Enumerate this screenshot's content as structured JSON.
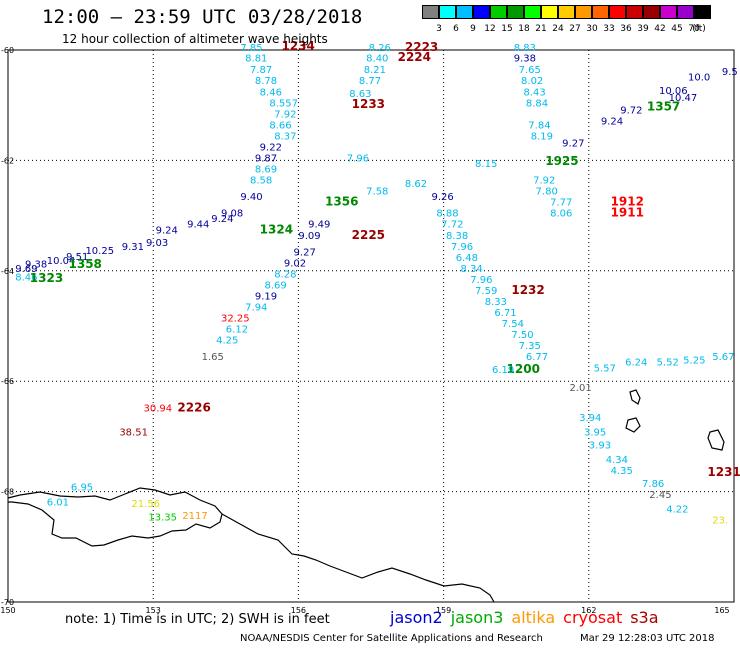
{
  "header": {
    "title": "12:00 – 23:59 UTC 03/28/2018",
    "subtitle": "12 hour collection of altimeter wave heights"
  },
  "colorbar": {
    "unit": "(ft)",
    "colors": [
      "#808080",
      "#00ffff",
      "#00bfff",
      "#0000ff",
      "#00cc00",
      "#009900",
      "#00ff00",
      "#ffff00",
      "#ffcc00",
      "#ff9900",
      "#ff6600",
      "#ff0000",
      "#cc0000",
      "#990000",
      "#cc00cc",
      "#9900cc",
      "#000000"
    ],
    "labels": [
      "3",
      "6",
      "9",
      "12",
      "15",
      "18",
      "21",
      "24",
      "27",
      "30",
      "33",
      "36",
      "39",
      "42",
      "45",
      "70"
    ]
  },
  "axes": {
    "lat_ticks": [
      "-60",
      "-62",
      "-64",
      "-66",
      "-68",
      "-70"
    ],
    "lon_ticks": [
      "150",
      "153",
      "156",
      "159",
      "162",
      "165"
    ]
  },
  "note": "note: 1) Time is in UTC; 2) SWH is in feet",
  "legend": [
    {
      "name": "jason2",
      "color": "#0000cc"
    },
    {
      "name": "jason3",
      "color": "#00aa00"
    },
    {
      "name": "altika",
      "color": "#ff9900"
    },
    {
      "name": "cryosat",
      "color": "#ff0000"
    },
    {
      "name": "s3a",
      "color": "#aa0000"
    }
  ],
  "footer": "NOAA/NESDIS Center for Satellite Applications and Research",
  "footer_time": "Mar 29 12:28:03 UTC 2018",
  "labels": [
    {
      "t": "7.85",
      "lon": 154.8,
      "lat": -60.02,
      "c": "#00bbee"
    },
    {
      "t": "1234",
      "lon": 155.65,
      "lat": -60.0,
      "c": "#990000",
      "bold": true
    },
    {
      "t": "8.81",
      "lon": 154.9,
      "lat": -60.21,
      "c": "#00bbee"
    },
    {
      "t": "7.87",
      "lon": 155.0,
      "lat": -60.42,
      "c": "#00bbee"
    },
    {
      "t": "8.78",
      "lon": 155.1,
      "lat": -60.62,
      "c": "#00bbee"
    },
    {
      "t": "8.46",
      "lon": 155.2,
      "lat": -60.82,
      "c": "#00bbee"
    },
    {
      "t": "8.557",
      "lon": 155.4,
      "lat": -61.02,
      "c": "#00bbee"
    },
    {
      "t": "7.92",
      "lon": 155.5,
      "lat": -61.22,
      "c": "#00bbee"
    },
    {
      "t": "8.66",
      "lon": 155.4,
      "lat": -61.42,
      "c": "#00bbee"
    },
    {
      "t": "8.37",
      "lon": 155.5,
      "lat": -61.62,
      "c": "#00bbee"
    },
    {
      "t": "9.22",
      "lon": 155.2,
      "lat": -61.82,
      "c": "#000099"
    },
    {
      "t": "9.87",
      "lon": 155.1,
      "lat": -62.02,
      "c": "#000099"
    },
    {
      "t": "8.26",
      "lon": 157.45,
      "lat": -60.02,
      "c": "#00bbee"
    },
    {
      "t": "2223",
      "lon": 158.2,
      "lat": -60.02,
      "c": "#990000",
      "bold": true
    },
    {
      "t": "2224",
      "lon": 158.05,
      "lat": -60.2,
      "c": "#990000",
      "bold": true
    },
    {
      "t": "8.40",
      "lon": 157.4,
      "lat": -60.21,
      "c": "#00bbee"
    },
    {
      "t": "8.21",
      "lon": 157.35,
      "lat": -60.42,
      "c": "#00bbee"
    },
    {
      "t": "8.77",
      "lon": 157.25,
      "lat": -60.62,
      "c": "#00bbee"
    },
    {
      "t": "8.63",
      "lon": 157.05,
      "lat": -60.85,
      "c": "#00bbee"
    },
    {
      "t": "1233",
      "lon": 157.1,
      "lat": -61.05,
      "c": "#990000",
      "bold": true
    },
    {
      "t": "7.96",
      "lon": 157.0,
      "lat": -62.02,
      "c": "#00bbee"
    },
    {
      "t": "8.83",
      "lon": 160.45,
      "lat": -60.02,
      "c": "#00bbee"
    },
    {
      "t": "9.38",
      "lon": 160.45,
      "lat": -60.21,
      "c": "#000099"
    },
    {
      "t": "7.65",
      "lon": 160.55,
      "lat": -60.42,
      "c": "#00bbee"
    },
    {
      "t": "8.02",
      "lon": 160.6,
      "lat": -60.62,
      "c": "#00bbee"
    },
    {
      "t": "8.43",
      "lon": 160.65,
      "lat": -60.82,
      "c": "#00bbee"
    },
    {
      "t": "8.84",
      "lon": 160.7,
      "lat": -61.02,
      "c": "#00bbee"
    },
    {
      "t": "7.84",
      "lon": 160.75,
      "lat": -61.42,
      "c": "#00bbee"
    },
    {
      "t": "8.19",
      "lon": 160.8,
      "lat": -61.62,
      "c": "#00bbee"
    },
    {
      "t": "7.92",
      "lon": 160.85,
      "lat": -62.42,
      "c": "#00bbee"
    },
    {
      "t": "7.80",
      "lon": 160.9,
      "lat": -62.62,
      "c": "#00bbee"
    },
    {
      "t": "7.77",
      "lon": 161.2,
      "lat": -62.82,
      "c": "#00bbee"
    },
    {
      "t": "8.06",
      "lon": 161.2,
      "lat": -63.02,
      "c": "#00bbee"
    },
    {
      "t": "1912",
      "lon": 162.45,
      "lat": -62.82,
      "c": "#ff0000",
      "bold": true
    },
    {
      "t": "1911",
      "lon": 162.45,
      "lat": -63.02,
      "c": "#ff0000",
      "bold": true
    },
    {
      "t": "1925",
      "lon": 161.1,
      "lat": -62.08,
      "c": "#008800",
      "bold": true
    },
    {
      "t": "1357",
      "lon": 163.2,
      "lat": -61.1,
      "c": "#008800",
      "bold": true
    },
    {
      "t": "9.26",
      "lon": 158.75,
      "lat": -62.72,
      "c": "#000099"
    },
    {
      "t": "1356",
      "lon": 156.55,
      "lat": -62.82,
      "c": "#008800",
      "bold": true
    },
    {
      "t": "8.69",
      "lon": 155.1,
      "lat": -62.22,
      "c": "#00bbee"
    },
    {
      "t": "8.58",
      "lon": 155.0,
      "lat": -62.42,
      "c": "#00bbee"
    },
    {
      "t": "9.40",
      "lon": 154.8,
      "lat": -62.72,
      "c": "#000099"
    },
    {
      "t": "9.08",
      "lon": 154.4,
      "lat": -63.02,
      "c": "#000099"
    },
    {
      "t": "8.88",
      "lon": 158.85,
      "lat": -63.02,
      "c": "#00bbee"
    },
    {
      "t": "7.72",
      "lon": 158.95,
      "lat": -63.22,
      "c": "#00bbee"
    },
    {
      "t": "8.38",
      "lon": 159.05,
      "lat": -63.42,
      "c": "#00bbee"
    },
    {
      "t": "7.96",
      "lon": 159.15,
      "lat": -63.62,
      "c": "#00bbee"
    },
    {
      "t": "6.48",
      "lon": 159.25,
      "lat": -63.82,
      "c": "#00bbee"
    },
    {
      "t": "8.34",
      "lon": 159.35,
      "lat": -64.02,
      "c": "#00bbee"
    },
    {
      "t": "7.96",
      "lon": 159.55,
      "lat": -64.22,
      "c": "#00bbee"
    },
    {
      "t": "7.59",
      "lon": 159.65,
      "lat": -64.42,
      "c": "#00bbee"
    },
    {
      "t": "1232",
      "lon": 160.4,
      "lat": -64.42,
      "c": "#990000",
      "bold": true
    },
    {
      "t": "8.33",
      "lon": 159.85,
      "lat": -64.62,
      "c": "#00bbee"
    },
    {
      "t": "6.71",
      "lon": 160.05,
      "lat": -64.82,
      "c": "#00bbee"
    },
    {
      "t": "7.54",
      "lon": 160.2,
      "lat": -65.02,
      "c": "#00bbee"
    },
    {
      "t": "7.50",
      "lon": 160.4,
      "lat": -65.22,
      "c": "#00bbee"
    },
    {
      "t": "7.35",
      "lon": 160.55,
      "lat": -65.42,
      "c": "#00bbee"
    },
    {
      "t": "6.77",
      "lon": 160.7,
      "lat": -65.62,
      "c": "#00bbee"
    },
    {
      "t": "1200",
      "lon": 160.3,
      "lat": -65.85,
      "c": "#008800",
      "bold": true
    },
    {
      "t": "2.01",
      "lon": 161.6,
      "lat": -66.18,
      "c": "#555555"
    },
    {
      "t": "3.94",
      "lon": 161.8,
      "lat": -66.72,
      "c": "#00bbee"
    },
    {
      "t": "3.95",
      "lon": 161.9,
      "lat": -66.98,
      "c": "#00bbee"
    },
    {
      "t": "3.93",
      "lon": 162.0,
      "lat": -67.22,
      "c": "#00bbee"
    },
    {
      "t": "4.34",
      "lon": 162.35,
      "lat": -67.48,
      "c": "#00bbee"
    },
    {
      "t": "4.35",
      "lon": 162.45,
      "lat": -67.68,
      "c": "#00bbee"
    },
    {
      "t": "7.86",
      "lon": 163.1,
      "lat": -67.92,
      "c": "#00bbee"
    },
    {
      "t": "2.45",
      "lon": 163.25,
      "lat": -68.12,
      "c": "#555555"
    },
    {
      "t": "4.22",
      "lon": 163.6,
      "lat": -68.38,
      "c": "#00bbee"
    },
    {
      "t": "23.",
      "lon": 164.55,
      "lat": -68.58,
      "c": "#dddd00"
    },
    {
      "t": "1231",
      "lon": 164.45,
      "lat": -67.72,
      "c": "#990000",
      "bold": true
    },
    {
      "t": "5.25",
      "lon": 163.95,
      "lat": -65.68,
      "c": "#00bbee"
    },
    {
      "t": "5.67",
      "lon": 164.55,
      "lat": -65.62,
      "c": "#00bbee"
    },
    {
      "t": "5.52",
      "lon": 163.4,
      "lat": -65.72,
      "c": "#00bbee"
    },
    {
      "t": "6.24",
      "lon": 162.75,
      "lat": -65.72,
      "c": "#00bbee"
    },
    {
      "t": "5.57",
      "lon": 162.1,
      "lat": -65.82,
      "c": "#00bbee"
    },
    {
      "t": "6.19",
      "lon": 160.0,
      "lat": -65.85,
      "c": "#00bbee"
    },
    {
      "t": "9.27",
      "lon": 155.9,
      "lat": -63.72,
      "c": "#000099"
    },
    {
      "t": "9.02",
      "lon": 155.7,
      "lat": -63.92,
      "c": "#000099"
    },
    {
      "t": "8.28",
      "lon": 155.5,
      "lat": -64.12,
      "c": "#00bbee"
    },
    {
      "t": "8.69",
      "lon": 155.3,
      "lat": -64.32,
      "c": "#00bbee"
    },
    {
      "t": "9.19",
      "lon": 155.1,
      "lat": -64.52,
      "c": "#000099"
    },
    {
      "t": "7.94",
      "lon": 154.9,
      "lat": -64.72,
      "c": "#00bbee"
    },
    {
      "t": "32.25",
      "lon": 154.4,
      "lat": -64.92,
      "c": "#ff0000"
    },
    {
      "t": "6.12",
      "lon": 154.5,
      "lat": -65.12,
      "c": "#00bbee"
    },
    {
      "t": "4.25",
      "lon": 154.3,
      "lat": -65.32,
      "c": "#00bbee"
    },
    {
      "t": "1.65",
      "lon": 154.0,
      "lat": -65.62,
      "c": "#555555"
    },
    {
      "t": "9.09",
      "lon": 156.0,
      "lat": -63.42,
      "c": "#000099"
    },
    {
      "t": "9.49",
      "lon": 156.2,
      "lat": -63.22,
      "c": "#000099"
    },
    {
      "t": "2225",
      "lon": 157.1,
      "lat": -63.42,
      "c": "#990000",
      "bold": true
    },
    {
      "t": "1324",
      "lon": 155.2,
      "lat": -63.32,
      "c": "#008800",
      "bold": true
    },
    {
      "t": "9.24",
      "lon": 154.2,
      "lat": -63.12,
      "c": "#000099"
    },
    {
      "t": "9.44",
      "lon": 153.7,
      "lat": -63.22,
      "c": "#000099"
    },
    {
      "t": "9.24",
      "lon": 153.05,
      "lat": -63.32,
      "c": "#000099"
    },
    {
      "t": "9.03",
      "lon": 152.85,
      "lat": -63.55,
      "c": "#000099"
    },
    {
      "t": "9.31",
      "lon": 152.35,
      "lat": -63.62,
      "c": "#000099"
    },
    {
      "t": "10.25",
      "lon": 151.6,
      "lat": -63.7,
      "c": "#000099"
    },
    {
      "t": "9.51",
      "lon": 151.2,
      "lat": -63.8,
      "c": "#000099"
    },
    {
      "t": "10.04",
      "lon": 150.8,
      "lat": -63.88,
      "c": "#000099"
    },
    {
      "t": "9.38",
      "lon": 150.35,
      "lat": -63.94,
      "c": "#000099"
    },
    {
      "t": "9.69",
      "lon": 150.15,
      "lat": -64.02,
      "c": "#000099"
    },
    {
      "t": "8.46",
      "lon": 150.15,
      "lat": -64.18,
      "c": "#00bbee"
    },
    {
      "t": "1323",
      "lon": 150.45,
      "lat": -64.2,
      "c": "#008800",
      "bold": true
    },
    {
      "t": "1358",
      "lon": 151.25,
      "lat": -63.95,
      "c": "#008800",
      "bold": true
    },
    {
      "t": "10.0",
      "lon": 164.05,
      "lat": -60.55,
      "c": "#000099"
    },
    {
      "t": "9.5",
      "lon": 164.75,
      "lat": -60.45,
      "c": "#000099"
    },
    {
      "t": "10.06",
      "lon": 163.45,
      "lat": -60.8,
      "c": "#000099"
    },
    {
      "t": "10.47",
      "lon": 163.65,
      "lat": -60.92,
      "c": "#000099"
    },
    {
      "t": "9.72",
      "lon": 162.65,
      "lat": -61.15,
      "c": "#000099"
    },
    {
      "t": "9.24",
      "lon": 162.25,
      "lat": -61.35,
      "c": "#000099"
    },
    {
      "t": "9.27",
      "lon": 161.45,
      "lat": -61.75,
      "c": "#000099"
    },
    {
      "t": "8.15",
      "lon": 159.65,
      "lat": -62.12,
      "c": "#00bbee"
    },
    {
      "t": "8.62",
      "lon": 158.2,
      "lat": -62.48,
      "c": "#00bbee"
    },
    {
      "t": "7.58",
      "lon": 157.4,
      "lat": -62.62,
      "c": "#00bbee"
    },
    {
      "t": "30.94",
      "lon": 152.8,
      "lat": -66.55,
      "c": "#ff0000"
    },
    {
      "t": "2226",
      "lon": 153.5,
      "lat": -66.55,
      "c": "#990000",
      "bold": true
    },
    {
      "t": "38.51",
      "lon": 152.3,
      "lat": -66.98,
      "c": "#990000"
    },
    {
      "t": "6.95",
      "lon": 151.3,
      "lat": -67.98,
      "c": "#00bbee"
    },
    {
      "t": "6.01",
      "lon": 150.8,
      "lat": -68.25,
      "c": "#00bbee"
    },
    {
      "t": "21.56",
      "lon": 152.55,
      "lat": -68.28,
      "c": "#dddd00"
    },
    {
      "t": "13.35",
      "lon": 152.9,
      "lat": -68.52,
      "c": "#00cc00"
    },
    {
      "t": "2117",
      "lon": 153.6,
      "lat": -68.5,
      "c": "#ff9900"
    }
  ]
}
